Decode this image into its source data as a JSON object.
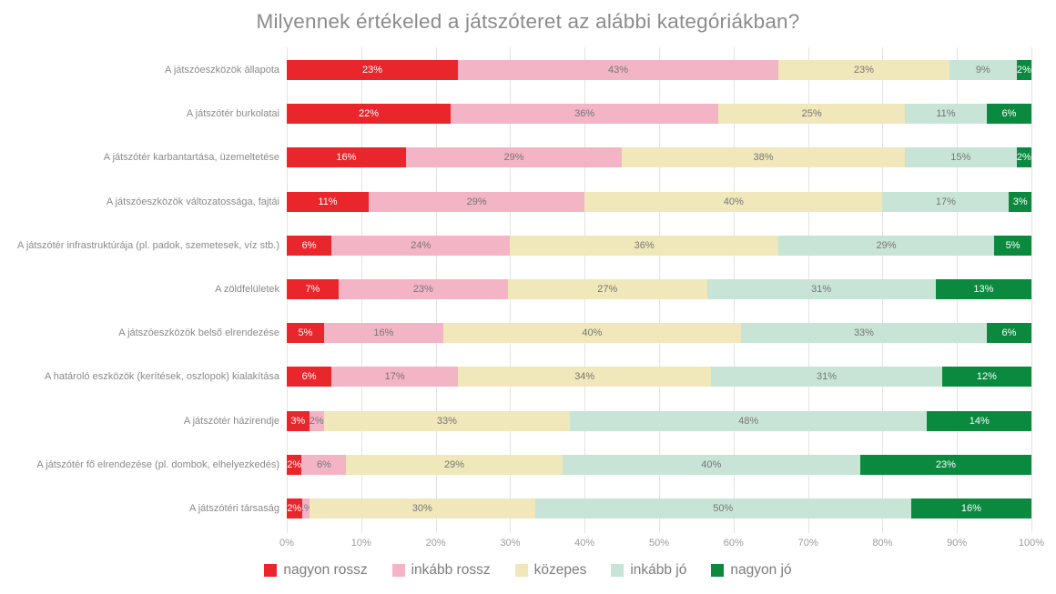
{
  "chart_data": {
    "type": "bar",
    "stacked": true,
    "orientation": "horizontal",
    "title": "Milyennek értékeled a játszóteret az alábbi kategóriákban?",
    "categories": [
      "A játszóeszközök állapota",
      "A játszótér burkolatai",
      "A játszótér karbantartása, üzemeltetése",
      "A játszóeszközök változatossága, fajtái",
      "A játszótér infrastruktúrája (pl. padok, szemetesek, víz stb.)",
      "A zöldfelületek",
      "A játszóeszközök belső elrendezése",
      "A határoló eszközök (kerítések, oszlopok) kialakítása",
      "A játszótér házirendje",
      "A játszótér fő elrendezése (pl. dombok, elhelyezkedés)",
      "A játszótéri társaság"
    ],
    "series": [
      {
        "name": "nagyon rossz",
        "color": "#e8262b",
        "label_color": "#ffffff",
        "values": [
          23,
          22,
          16,
          11,
          6,
          7,
          5,
          6,
          3,
          2,
          2
        ]
      },
      {
        "name": "inkább rossz",
        "color": "#f3b4c5",
        "label_color": "#767676",
        "values": [
          43,
          36,
          29,
          29,
          24,
          23,
          16,
          17,
          2,
          6,
          1
        ]
      },
      {
        "name": "közepes",
        "color": "#f0e7ba",
        "label_color": "#767676",
        "values": [
          23,
          25,
          38,
          40,
          36,
          27,
          40,
          34,
          33,
          29,
          30
        ]
      },
      {
        "name": "inkább jó",
        "color": "#c8e4d6",
        "label_color": "#767676",
        "values": [
          9,
          11,
          15,
          17,
          29,
          31,
          33,
          31,
          48,
          40,
          50
        ]
      },
      {
        "name": "nagyon jó",
        "color": "#0b8a3f",
        "label_color": "#ffffff",
        "values": [
          2,
          6,
          2,
          3,
          5,
          13,
          6,
          12,
          14,
          23,
          16
        ]
      }
    ],
    "x_ticks": [
      "0%",
      "10%",
      "20%",
      "30%",
      "40%",
      "50%",
      "60%",
      "70%",
      "80%",
      "90%",
      "100%"
    ],
    "xlim": [
      0,
      100
    ],
    "grid": true,
    "legend_position": "bottom",
    "value_suffix": "%"
  }
}
